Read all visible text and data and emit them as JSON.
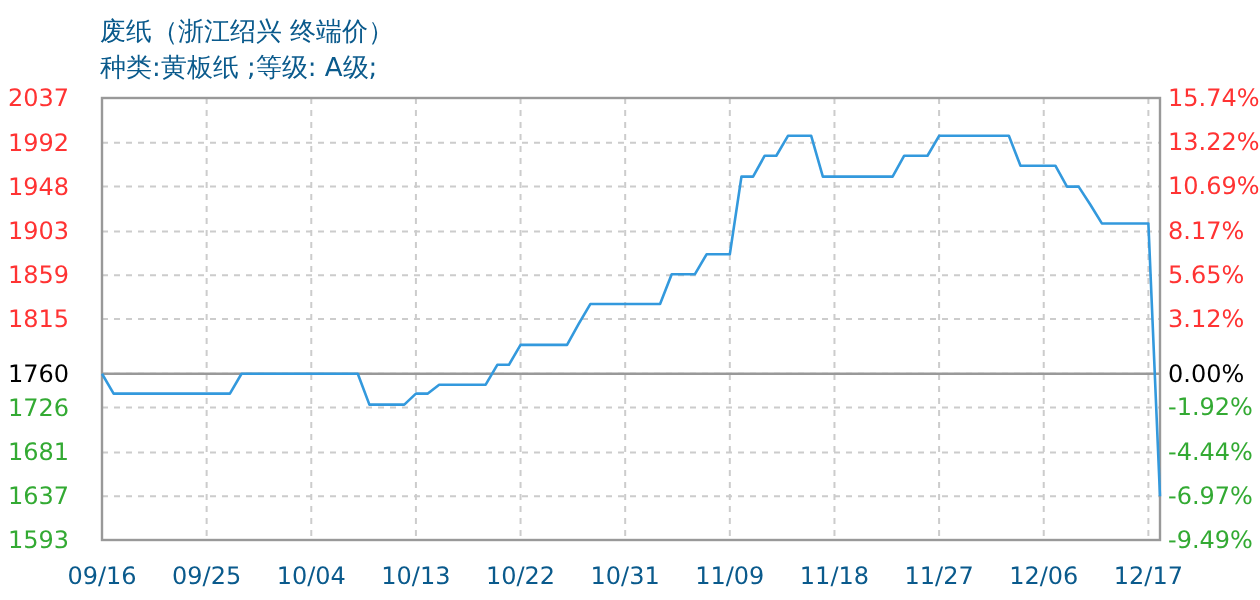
{
  "chart_data": {
    "type": "line",
    "title": "废纸（浙江绍兴 终端价）",
    "subtitle": "种类:黄板纸 ;等级: A级;",
    "categories": [
      "09/16",
      null,
      null,
      null,
      null,
      null,
      null,
      null,
      null,
      "09/25",
      null,
      null,
      null,
      null,
      null,
      null,
      null,
      null,
      "10/04",
      null,
      null,
      null,
      null,
      null,
      null,
      null,
      null,
      "10/13",
      null,
      null,
      null,
      null,
      null,
      null,
      null,
      null,
      "10/22",
      null,
      null,
      null,
      null,
      null,
      null,
      null,
      null,
      "10/31",
      null,
      null,
      null,
      null,
      null,
      null,
      null,
      null,
      "11/09",
      null,
      null,
      null,
      null,
      null,
      null,
      null,
      null,
      "11/18",
      null,
      null,
      null,
      null,
      null,
      null,
      null,
      null,
      "11/27",
      null,
      null,
      null,
      null,
      null,
      null,
      null,
      null,
      "12/06",
      null,
      null,
      null,
      null,
      null,
      null,
      null,
      null,
      "12/17",
      null
    ],
    "ylim": [
      1593,
      2037
    ],
    "yticks": [
      1593,
      1637,
      1681,
      1726,
      1760,
      1815,
      1859,
      1903,
      1948,
      1992,
      2037
    ],
    "y2lim": [
      -9.49,
      15.74
    ],
    "y2ticks": [
      {
        "value": -9.49,
        "label": "-9.49%"
      },
      {
        "value": -6.97,
        "label": "-6.97%"
      },
      {
        "value": -4.44,
        "label": "-4.44%"
      },
      {
        "value": -1.92,
        "label": "-1.92%"
      },
      {
        "value": 0,
        "label": "0.00%"
      },
      {
        "value": 3.12,
        "label": "3.12%"
      },
      {
        "value": 5.65,
        "label": "5.65%"
      },
      {
        "value": 8.17,
        "label": "8.17%"
      },
      {
        "value": 10.69,
        "label": "10.69%"
      },
      {
        "value": 13.22,
        "label": "13.22%"
      },
      {
        "value": 15.74,
        "label": "15.74%"
      }
    ],
    "ref_lines": [
      {
        "axis": "y",
        "value": 1760,
        "color": "#999999"
      }
    ],
    "grid": true,
    "marker": "none",
    "line_style": "solid",
    "series": [
      {
        "color": "#3399dd",
        "values": [
          1760,
          1740,
          1740,
          1740,
          1740,
          1740,
          1740,
          1740,
          1740,
          1740,
          1740,
          1740,
          1760,
          1760,
          1760,
          1760,
          1760,
          1760,
          1760,
          1760,
          1760,
          1760,
          1760,
          1729,
          1729,
          1729,
          1729,
          1740,
          1740,
          1749,
          1749,
          1749,
          1749,
          1749,
          1769,
          1769,
          1789,
          1789,
          1789,
          1789,
          1789,
          1810,
          1830,
          1830,
          1830,
          1830,
          1830,
          1830,
          1830,
          1860,
          1860,
          1860,
          1880,
          1880,
          1880,
          1958,
          1958,
          1979,
          1979,
          1999,
          1999,
          1999,
          1958,
          1958,
          1958,
          1958,
          1958,
          1958,
          1958,
          1979,
          1979,
          1979,
          1999,
          1999,
          1999,
          1999,
          1999,
          1999,
          1999,
          1969,
          1969,
          1969,
          1969,
          1948,
          1948,
          1930,
          1911,
          1911,
          1911,
          1911,
          1911,
          1637
        ]
      }
    ]
  }
}
